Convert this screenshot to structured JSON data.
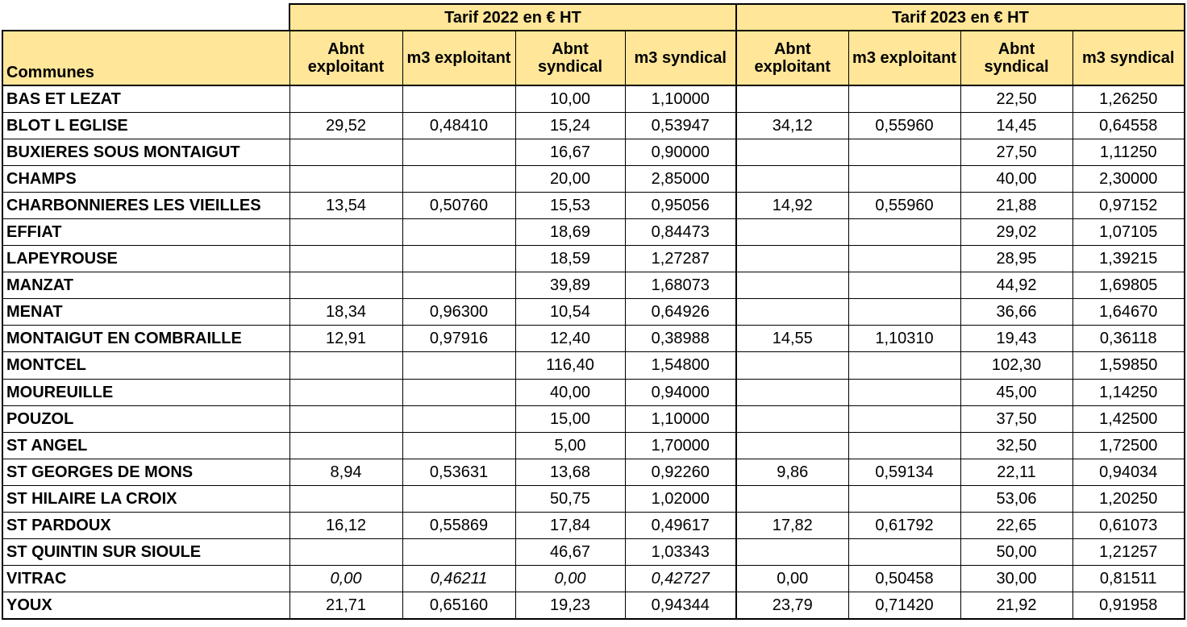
{
  "headers": {
    "year_2022": "Tarif 2022 en € HT",
    "year_2023": "Tarif 2023 en € HT",
    "communes": "Communes",
    "columns": [
      "Abnt exploitant",
      "m3 exploitant",
      "Abnt syndical",
      "m3 syndical",
      "Abnt exploitant",
      "m3 exploitant",
      "Abnt syndical",
      "m3 syndical"
    ]
  },
  "rows": [
    {
      "commune": "BAS ET LEZAT",
      "values": [
        "",
        "",
        "10,00",
        "1,10000",
        "",
        "",
        "22,50",
        "1,26250"
      ]
    },
    {
      "commune": "BLOT L EGLISE",
      "values": [
        "29,52",
        "0,48410",
        "15,24",
        "0,53947",
        "34,12",
        "0,55960",
        "14,45",
        "0,64558"
      ]
    },
    {
      "commune": "BUXIERES SOUS MONTAIGUT",
      "values": [
        "",
        "",
        "16,67",
        "0,90000",
        "",
        "",
        "27,50",
        "1,11250"
      ]
    },
    {
      "commune": "CHAMPS",
      "values": [
        "",
        "",
        "20,00",
        "2,85000",
        "",
        "",
        "40,00",
        "2,30000"
      ]
    },
    {
      "commune": "CHARBONNIERES LES VIEILLES",
      "values": [
        "13,54",
        "0,50760",
        "15,53",
        "0,95056",
        "14,92",
        "0,55960",
        "21,88",
        "0,97152"
      ]
    },
    {
      "commune": "EFFIAT",
      "values": [
        "",
        "",
        "18,69",
        "0,84473",
        "",
        "",
        "29,02",
        "1,07105"
      ]
    },
    {
      "commune": "LAPEYROUSE",
      "values": [
        "",
        "",
        "18,59",
        "1,27287",
        "",
        "",
        "28,95",
        "1,39215"
      ]
    },
    {
      "commune": "MANZAT",
      "values": [
        "",
        "",
        "39,89",
        "1,68073",
        "",
        "",
        "44,92",
        "1,69805"
      ]
    },
    {
      "commune": "MENAT",
      "values": [
        "18,34",
        "0,96300",
        "10,54",
        "0,64926",
        "",
        "",
        "36,66",
        "1,64670"
      ]
    },
    {
      "commune": "MONTAIGUT EN COMBRAILLE",
      "values": [
        "12,91",
        "0,97916",
        "12,40",
        "0,38988",
        "14,55",
        "1,10310",
        "19,43",
        "0,36118"
      ]
    },
    {
      "commune": "MONTCEL",
      "values": [
        "",
        "",
        "116,40",
        "1,54800",
        "",
        "",
        "102,30",
        "1,59850"
      ]
    },
    {
      "commune": "MOUREUILLE",
      "values": [
        "",
        "",
        "40,00",
        "0,94000",
        "",
        "",
        "45,00",
        "1,14250"
      ]
    },
    {
      "commune": "POUZOL",
      "values": [
        "",
        "",
        "15,00",
        "1,10000",
        "",
        "",
        "37,50",
        "1,42500"
      ]
    },
    {
      "commune": "ST ANGEL",
      "values": [
        "",
        "",
        "5,00",
        "1,70000",
        "",
        "",
        "32,50",
        "1,72500"
      ]
    },
    {
      "commune": "ST GEORGES DE MONS",
      "values": [
        "8,94",
        "0,53631",
        "13,68",
        "0,92260",
        "9,86",
        "0,59134",
        "22,11",
        "0,94034"
      ]
    },
    {
      "commune": "ST HILAIRE LA CROIX",
      "values": [
        "",
        "",
        "50,75",
        "1,02000",
        "",
        "",
        "53,06",
        "1,20250"
      ]
    },
    {
      "commune": "ST PARDOUX",
      "values": [
        "16,12",
        "0,55869",
        "17,84",
        "0,49617",
        "17,82",
        "0,61792",
        "22,65",
        "0,61073"
      ]
    },
    {
      "commune": "ST QUINTIN SUR SIOULE",
      "values": [
        "",
        "",
        "46,67",
        "1,03343",
        "",
        "",
        "50,00",
        "1,21257"
      ]
    },
    {
      "commune": "VITRAC",
      "values": [
        "0,00",
        "0,46211",
        "0,00",
        "0,42727",
        "0,00",
        "0,50458",
        "30,00",
        "0,81511"
      ],
      "italic_2022": true
    },
    {
      "commune": "YOUX",
      "values": [
        "21,71",
        "0,65160",
        "19,23",
        "0,94344",
        "23,79",
        "0,71420",
        "21,92",
        "0,91958"
      ]
    }
  ]
}
